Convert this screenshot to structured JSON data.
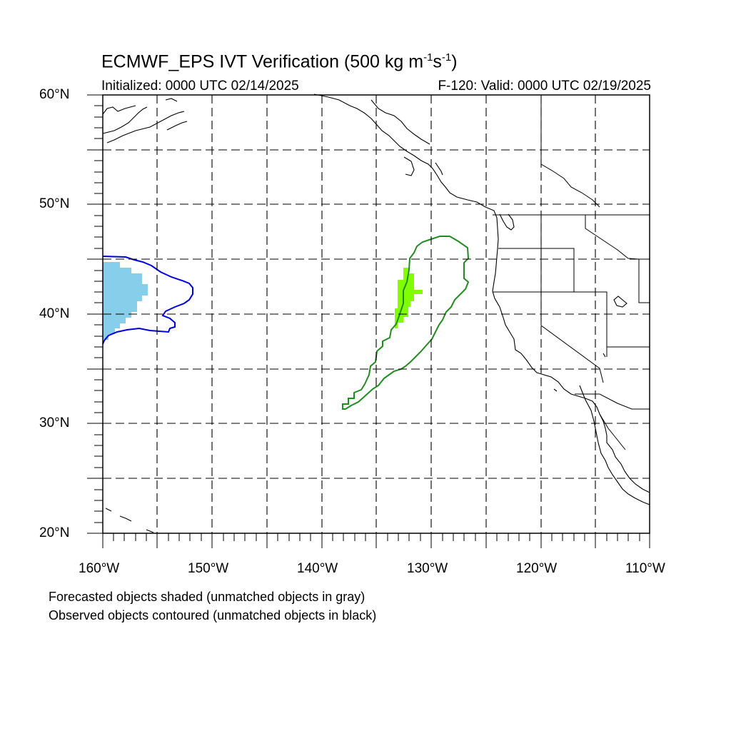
{
  "title": {
    "main": "ECMWF_EPS IVT Verification (500 kg m",
    "sup1": "-1",
    "mid": "s",
    "sup2": "-1",
    "end": ")"
  },
  "subtitle_left": "Initialized: 0000 UTC 02/14/2025",
  "subtitle_right": "F-120: Valid: 0000 UTC 02/19/2025",
  "lat_labels": [
    "60°N",
    "50°N",
    "40°N",
    "30°N",
    "20°N"
  ],
  "lon_labels": [
    "160°W",
    "150°W",
    "140°W",
    "130°W",
    "120°W",
    "110°W"
  ],
  "notes": [
    "Forecasted objects shaded (unmatched objects in gray)",
    "Observed objects contoured (unmatched objects in black)"
  ],
  "map_extent": {
    "lon_min": -160,
    "lon_max": -110,
    "lat_min": 20,
    "lat_max": 60
  },
  "objects": [
    {
      "name": "west-object",
      "forecast_fill": "#87ceeb",
      "observed_contour": "#0000dd"
    },
    {
      "name": "east-object",
      "forecast_fill": "#80ff00",
      "observed_contour": "#228b22"
    }
  ]
}
